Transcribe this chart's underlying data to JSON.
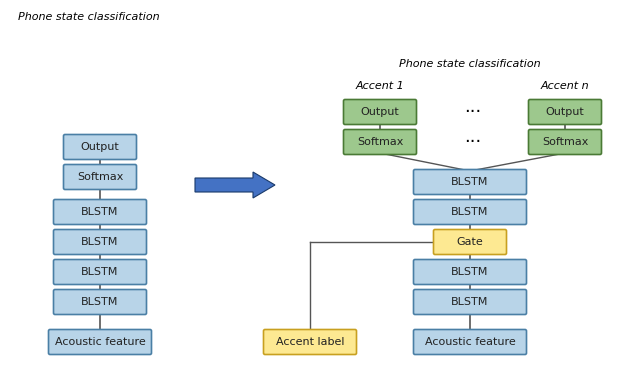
{
  "fig_width": 6.2,
  "fig_height": 3.8,
  "dpi": 100,
  "bg_color": "#ffffff",
  "blue_box_fc": "#b8d4e8",
  "blue_box_ec": "#4a7fa5",
  "green_box_fc": "#9dc88d",
  "green_box_ec": "#4a7a35",
  "yellow_box_fc": "#fde992",
  "yellow_box_ec": "#c8a020",
  "arrow_color": "#4472c4",
  "line_color": "#555555",
  "left_title": "Phone state classification",
  "right_title": "Phone state classification",
  "accent1_label": "Accent 1",
  "accentn_label": "Accent n"
}
